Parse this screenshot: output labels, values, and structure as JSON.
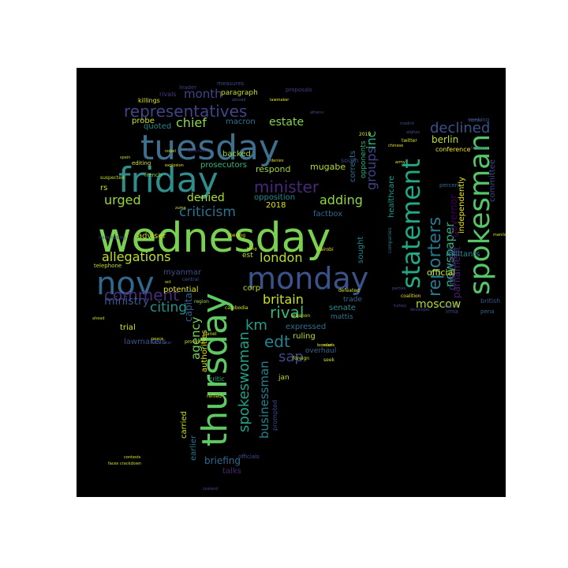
{
  "wordcloud": {
    "words": [
      {
        "text": "wednesday",
        "color": "#7ad151",
        "size": 52,
        "vertical": false
      },
      {
        "text": "tuesday",
        "color": "#3e6f8e",
        "size": 44,
        "vertical": false
      },
      {
        "text": "friday",
        "color": "#2f8e8c",
        "size": 44,
        "vertical": false
      },
      {
        "text": "thursday",
        "color": "#5ec962",
        "size": 44,
        "vertical": true
      },
      {
        "text": "monday",
        "color": "#3b528b",
        "size": 38,
        "vertical": false
      },
      {
        "text": "nov",
        "color": "#31688e",
        "size": 40,
        "vertical": false
      },
      {
        "text": "spokesman",
        "color": "#55c667",
        "size": 36,
        "vertical": true
      },
      {
        "text": "statement",
        "color": "#22a884",
        "size": 32,
        "vertical": true
      },
      {
        "text": "reporters",
        "color": "#2a788e",
        "size": 22,
        "vertical": true
      },
      {
        "text": "representatives",
        "color": "#414487",
        "size": 20,
        "vertical": false
      },
      {
        "text": "minister",
        "color": "#482878",
        "size": 20,
        "vertical": false
      },
      {
        "text": "criticism",
        "color": "#2c728e",
        "size": 17,
        "vertical": false
      },
      {
        "text": "allegations",
        "color": "#bddf26",
        "size": 16,
        "vertical": false
      },
      {
        "text": "comment",
        "color": "#472c7a",
        "size": 20,
        "vertical": false
      },
      {
        "text": "london",
        "color": "#b5de2b",
        "size": 16,
        "vertical": false
      },
      {
        "text": "britain",
        "color": "#cae11f",
        "size": 16,
        "vertical": false
      },
      {
        "text": "rival",
        "color": "#35b779",
        "size": 20,
        "vertical": false
      },
      {
        "text": "edt",
        "color": "#26828e",
        "size": 20,
        "vertical": false
      },
      {
        "text": "sap",
        "color": "#3e4a89",
        "size": 18,
        "vertical": false
      },
      {
        "text": "km",
        "color": "#1f9e89",
        "size": 18,
        "vertical": false
      },
      {
        "text": "spokeswoman",
        "color": "#1fa187",
        "size": 18,
        "vertical": true
      },
      {
        "text": "businessman",
        "color": "#277f8e",
        "size": 15,
        "vertical": true
      },
      {
        "text": "citing",
        "color": "#20928c",
        "size": 17,
        "vertical": false
      },
      {
        "text": "ministry",
        "color": "#3a548c",
        "size": 14,
        "vertical": false
      },
      {
        "text": "declined",
        "color": "#3b518b",
        "size": 18,
        "vertical": false
      },
      {
        "text": "newspaper",
        "color": "#2db27d",
        "size": 15,
        "vertical": true
      },
      {
        "text": "groups",
        "color": "#414487",
        "size": 16,
        "vertical": true
      },
      {
        "text": "inc",
        "color": "#29af7f",
        "size": 16,
        "vertical": true
      },
      {
        "text": "adding",
        "color": "#90d743",
        "size": 16,
        "vertical": false
      },
      {
        "text": "urged",
        "color": "#9bd93c",
        "size": 16,
        "vertical": false
      },
      {
        "text": "denied",
        "color": "#a8db34",
        "size": 14,
        "vertical": false
      },
      {
        "text": "chief",
        "color": "#8fd744",
        "size": 16,
        "vertical": false
      },
      {
        "text": "month",
        "color": "#404588",
        "size": 15,
        "vertical": false
      },
      {
        "text": "estate",
        "color": "#86d549",
        "size": 14,
        "vertical": false
      },
      {
        "text": "moscow",
        "color": "#b2dd2d",
        "size": 14,
        "vertical": false
      },
      {
        "text": "agency",
        "color": "#73d056",
        "size": 15,
        "vertical": true
      },
      {
        "text": "berlin",
        "color": "#c2df23",
        "size": 12,
        "vertical": false
      },
      {
        "text": "governor",
        "color": "#440154",
        "size": 12,
        "vertical": true
      },
      {
        "text": "criticized",
        "color": "#46327e",
        "size": 12,
        "vertical": true
      },
      {
        "text": "official",
        "color": "#d2e21b",
        "size": 11,
        "vertical": false
      },
      {
        "text": "parliament",
        "color": "#482173",
        "size": 12,
        "vertical": true
      },
      {
        "text": "independently",
        "color": "#e5e419",
        "size": 10,
        "vertical": true
      },
      {
        "text": "committee",
        "color": "#3f4889",
        "size": 10,
        "vertical": true
      },
      {
        "text": "conference",
        "color": "#e7e419",
        "size": 8,
        "vertical": false
      },
      {
        "text": "militants",
        "color": "#25848e",
        "size": 10,
        "vertical": false
      },
      {
        "text": "healthcare",
        "color": "#1e9c89",
        "size": 10,
        "vertical": true
      },
      {
        "text": "opposition",
        "color": "#238a8d",
        "size": 10,
        "vertical": false
      },
      {
        "text": "factbox",
        "color": "#31678e",
        "size": 10,
        "vertical": false
      },
      {
        "text": "myanmar",
        "color": "#3d4d8a",
        "size": 10,
        "vertical": false
      },
      {
        "text": "potential",
        "color": "#e3e418",
        "size": 10,
        "vertical": false
      },
      {
        "text": "capital",
        "color": "#355f8d",
        "size": 12,
        "vertical": true
      },
      {
        "text": "trial",
        "color": "#dde318",
        "size": 10,
        "vertical": false
      },
      {
        "text": "lawmakers",
        "color": "#3c508b",
        "size": 10,
        "vertical": false
      },
      {
        "text": "adviser",
        "color": "#cde11d",
        "size": 10,
        "vertical": false
      },
      {
        "text": "expressed",
        "color": "#2e6e8e",
        "size": 10,
        "vertical": false
      },
      {
        "text": "ruling",
        "color": "#b8de29",
        "size": 10,
        "vertical": false
      },
      {
        "text": "corp",
        "color": "#b5de2b",
        "size": 10,
        "vertical": false
      },
      {
        "text": "senate",
        "color": "#228d8d",
        "size": 10,
        "vertical": false
      },
      {
        "text": "trade",
        "color": "#32648e",
        "size": 9,
        "vertical": false
      },
      {
        "text": "jan",
        "color": "#b5de2b",
        "size": 9,
        "vertical": false
      },
      {
        "text": "mattis",
        "color": "#2a768e",
        "size": 9,
        "vertical": false
      },
      {
        "text": "overhaul",
        "color": "#33638d",
        "size": 9,
        "vertical": false
      },
      {
        "text": "briefing",
        "color": "#306a8e",
        "size": 12,
        "vertical": false
      },
      {
        "text": "talks",
        "color": "#482475",
        "size": 10,
        "vertical": false
      },
      {
        "text": "earlier",
        "color": "#2b758e",
        "size": 10,
        "vertical": true
      },
      {
        "text": "carried",
        "color": "#c0df25",
        "size": 10,
        "vertical": true
      },
      {
        "text": "authorities",
        "color": "#e0e318",
        "size": 10,
        "vertical": true
      },
      {
        "text": "prompted",
        "color": "#3d4e8a",
        "size": 8,
        "vertical": true
      },
      {
        "text": "critic",
        "color": "#2ab07f",
        "size": 8,
        "vertical": false
      },
      {
        "text": "officials",
        "color": "#3b528b",
        "size": 7,
        "vertical": false
      },
      {
        "text": "respond",
        "color": "#9fda3a",
        "size": 11,
        "vertical": false
      },
      {
        "text": "mugabe",
        "color": "#b0dd2f",
        "size": 11,
        "vertical": false
      },
      {
        "text": "2018",
        "color": "#e1e418",
        "size": 10,
        "vertical": false
      },
      {
        "text": "corrects",
        "color": "#2e6f8e",
        "size": 10,
        "vertical": true
      },
      {
        "text": "sought",
        "color": "#25858e",
        "size": 10,
        "vertical": true
      },
      {
        "text": "opponents",
        "color": "#2db27d",
        "size": 9,
        "vertical": true
      },
      {
        "text": "south",
        "color": "#3f4788",
        "size": 8,
        "vertical": false
      },
      {
        "text": "est",
        "color": "#b0dd2f",
        "size": 9,
        "vertical": false
      },
      {
        "text": "backed",
        "color": "#9bd93c",
        "size": 10,
        "vertical": false
      },
      {
        "text": "prosecutors",
        "color": "#37b878",
        "size": 10,
        "vertical": false
      },
      {
        "text": "macron",
        "color": "#2c728e",
        "size": 10,
        "vertical": false
      },
      {
        "text": "quoted",
        "color": "#24878e",
        "size": 10,
        "vertical": false
      },
      {
        "text": "probe",
        "color": "#c8e020",
        "size": 10,
        "vertical": false
      },
      {
        "text": "paragraph",
        "color": "#c5e021",
        "size": 9,
        "vertical": false
      },
      {
        "text": "killings",
        "color": "#dfe318",
        "size": 8,
        "vertical": false
      },
      {
        "text": "rivals",
        "color": "#433e85",
        "size": 8,
        "vertical": false
      },
      {
        "text": "leader",
        "color": "#433d84",
        "size": 7,
        "vertical": false
      },
      {
        "text": "measures",
        "color": "#3e4989",
        "size": 7,
        "vertical": false
      },
      {
        "text": "editing",
        "color": "#d0e11c",
        "size": 7,
        "vertical": false
      },
      {
        "text": "french",
        "color": "#7fd34e",
        "size": 7,
        "vertical": false
      },
      {
        "text": "rs",
        "color": "#c2df23",
        "size": 10,
        "vertical": false
      },
      {
        "text": "telephone",
        "color": "#bddf26",
        "size": 7,
        "vertical": false
      },
      {
        "text": "nominating",
        "color": "#404688",
        "size": 6,
        "vertical": false
      },
      {
        "text": "kabul",
        "color": "#3f4889",
        "size": 6,
        "vertical": false
      },
      {
        "text": "irma",
        "color": "#3e4a89",
        "size": 7,
        "vertical": false
      },
      {
        "text": "pena",
        "color": "#31688e",
        "size": 7,
        "vertical": false
      },
      {
        "text": "british",
        "color": "#375a8c",
        "size": 8,
        "vertical": false
      },
      {
        "text": "percent",
        "color": "#2f6b8e",
        "size": 7,
        "vertical": false
      },
      {
        "text": "companies",
        "color": "#287c8e",
        "size": 6,
        "vertical": true
      },
      {
        "text": "coalition",
        "color": "#e5e419",
        "size": 6,
        "vertical": false
      },
      {
        "text": "twitter",
        "color": "#d5e21a",
        "size": 6,
        "vertical": false
      },
      {
        "text": "seeking",
        "color": "#3a538b",
        "size": 7,
        "vertical": false
      },
      {
        "text": "province",
        "color": "#d8e219",
        "size": 6,
        "vertical": false
      },
      {
        "text": "defeated",
        "color": "#d0e11c",
        "size": 6,
        "vertical": false
      },
      {
        "text": "nairobi",
        "color": "#e2e418",
        "size": 6,
        "vertical": false
      },
      {
        "text": "beijing",
        "color": "#e7e419",
        "size": 6,
        "vertical": false
      },
      {
        "text": "cambodia",
        "color": "#dde318",
        "size": 6,
        "vertical": false
      },
      {
        "text": "lebanon",
        "color": "#d5e21a",
        "size": 6,
        "vertical": false
      },
      {
        "text": "refiled",
        "color": "#d2e21b",
        "size": 6,
        "vertical": false
      },
      {
        "text": "seek",
        "color": "#c8e020",
        "size": 6,
        "vertical": false
      },
      {
        "text": "foreign",
        "color": "#c5e021",
        "size": 6,
        "vertical": false
      },
      {
        "text": "region",
        "color": "#a0da39",
        "size": 6,
        "vertical": false
      },
      {
        "text": "central",
        "color": "#3b528b",
        "size": 6,
        "vertical": false
      },
      {
        "text": "suspected",
        "color": "#c0df25",
        "size": 6,
        "vertical": false
      },
      {
        "text": "2019",
        "color": "#e1e418",
        "size": 6,
        "vertical": false
      },
      {
        "text": "panel",
        "color": "#d2e21b",
        "size": 6,
        "vertical": false
      },
      {
        "text": "madrid",
        "color": "#3d4e8a",
        "size": 5,
        "vertical": false
      },
      {
        "text": "athens",
        "color": "#3e4c8a",
        "size": 5,
        "vertical": false
      },
      {
        "text": "lawmaker",
        "color": "#e3e418",
        "size": 5,
        "vertical": false
      },
      {
        "text": "proposals",
        "color": "#433e85",
        "size": 7,
        "vertical": false
      },
      {
        "text": "abroad",
        "color": "#3c4f8a",
        "size": 5,
        "vertical": false
      },
      {
        "text": "afghan",
        "color": "#3b528b",
        "size": 5,
        "vertical": false
      },
      {
        "text": "army",
        "color": "#e5e419",
        "size": 5,
        "vertical": false
      },
      {
        "text": "zuma",
        "color": "#dfe318",
        "size": 5,
        "vertical": false
      },
      {
        "text": "denies",
        "color": "#dde318",
        "size": 5,
        "vertical": false
      },
      {
        "text": "manila",
        "color": "#e0e318",
        "size": 5,
        "vertical": false
      },
      {
        "text": "turkey",
        "color": "#3e4989",
        "size": 5,
        "vertical": false
      },
      {
        "text": "forces",
        "color": "#3b528b",
        "size": 5,
        "vertical": false
      },
      {
        "text": "parties",
        "color": "#3d4e8a",
        "size": 5,
        "vertical": false
      },
      {
        "text": "developer",
        "color": "#3e4a89",
        "size": 5,
        "vertical": false
      },
      {
        "text": "peace",
        "color": "#e1e418",
        "size": 5,
        "vertical": false
      },
      {
        "text": "rebels",
        "color": "#e5e419",
        "size": 5,
        "vertical": false
      },
      {
        "text": "additional",
        "color": "#3b528b",
        "size": 5,
        "vertical": false
      },
      {
        "text": "chinese",
        "color": "#e7e419",
        "size": 5,
        "vertical": false
      },
      {
        "text": "tensions",
        "color": "#3a548c",
        "size": 5,
        "vertical": false
      },
      {
        "text": "faces",
        "color": "#e3e418",
        "size": 5,
        "vertical": false
      },
      {
        "text": "crackdown",
        "color": "#c8e020",
        "size": 5,
        "vertical": false
      },
      {
        "text": "contests",
        "color": "#e2e418",
        "size": 5,
        "vertical": false
      },
      {
        "text": "zealand",
        "color": "#3f4788",
        "size": 5,
        "vertical": false
      },
      {
        "text": "ahead",
        "color": "#c0df25",
        "size": 5,
        "vertical": false
      },
      {
        "text": "spain",
        "color": "#bddf26",
        "size": 5,
        "vertical": false
      },
      {
        "text": "oct",
        "color": "#e1e418",
        "size": 5,
        "vertical": false
      },
      {
        "text": "bosnian",
        "color": "#dde318",
        "size": 5,
        "vertical": false
      },
      {
        "text": "launched",
        "color": "#482878",
        "size": 5,
        "vertical": false
      },
      {
        "text": "explosion",
        "color": "#e5e419",
        "size": 5,
        "vertical": false
      },
      {
        "text": "hong",
        "color": "#d8e219",
        "size": 5,
        "vertical": false
      },
      {
        "text": "nobel",
        "color": "#e3e418",
        "size": 5,
        "vertical": false
      }
    ]
  }
}
